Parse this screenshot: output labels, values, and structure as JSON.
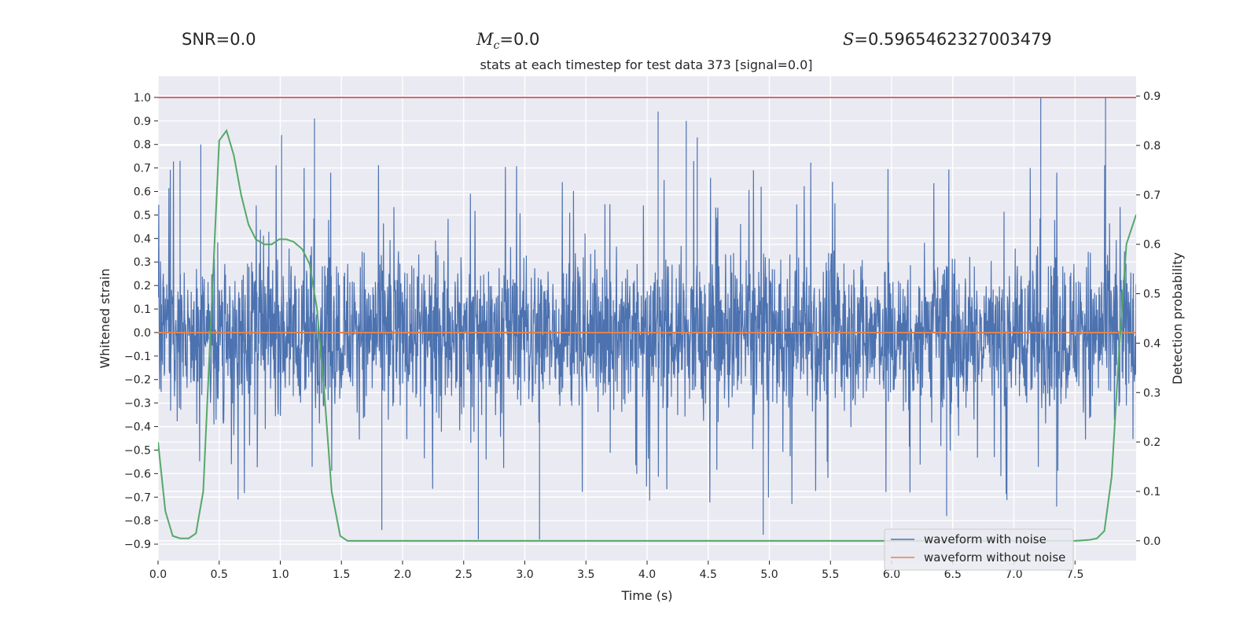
{
  "stats": {
    "snr_label": "SNR=0.0",
    "mc_symbol": "M",
    "mc_sub": "c",
    "mc_value": "=0.0",
    "s_symbol": "S",
    "s_value": "=0.5965462327003479"
  },
  "chart_data": {
    "type": "line",
    "title": "stats at each timestep for test data 373 [signal=0.0]",
    "xlabel": "Time (s)",
    "ylabel": "Whitened strain",
    "y2label": "Detection probability",
    "xlim": [
      0.0,
      8.0
    ],
    "ylim": [
      -0.97,
      1.09
    ],
    "y2lim": [
      -0.04,
      0.94
    ],
    "x_ticks": [
      0.0,
      0.5,
      1.0,
      1.5,
      2.0,
      2.5,
      3.0,
      3.5,
      4.0,
      4.5,
      5.0,
      5.5,
      6.0,
      6.5,
      7.0,
      7.5
    ],
    "x_tick_labels": [
      "0.0",
      "0.5",
      "1.0",
      "1.5",
      "2.0",
      "2.5",
      "3.0",
      "3.5",
      "4.0",
      "4.5",
      "5.0",
      "5.5",
      "6.0",
      "6.5",
      "7.0",
      "7.5"
    ],
    "y_ticks": [
      1.0,
      0.9,
      0.8,
      0.7,
      0.6,
      0.5,
      0.4,
      0.3,
      0.2,
      0.1,
      0.0,
      -0.1,
      -0.2,
      -0.3,
      -0.4,
      -0.5,
      -0.6,
      -0.7,
      -0.8,
      -0.9
    ],
    "y_tick_labels": [
      "1.0",
      "0.9",
      "0.8",
      "0.7",
      "0.6",
      "0.5",
      "0.4",
      "0.3",
      "0.2",
      "0.1",
      "0.0",
      "−0.1",
      "−0.2",
      "−0.3",
      "−0.4",
      "−0.5",
      "−0.6",
      "−0.7",
      "−0.8",
      "−0.9"
    ],
    "y2_ticks": [
      0.9,
      0.8,
      0.7,
      0.6,
      0.5,
      0.4,
      0.3,
      0.2,
      0.1,
      0.0
    ],
    "y2_tick_labels": [
      "0.9",
      "0.8",
      "0.7",
      "0.6",
      "0.5",
      "0.4",
      "0.3",
      "0.2",
      "0.1",
      "0.0"
    ],
    "threshold": {
      "axis": "y",
      "value": 1.0,
      "color": "#c44e52"
    },
    "series": [
      {
        "name": "waveform with noise",
        "color": "#4c72b0",
        "axis": "y",
        "kind": "noise",
        "x_range": [
          0.0,
          8.0
        ],
        "typical_envelope": [
          -0.45,
          0.45
        ],
        "peaks": [
          {
            "x": 0.18,
            "y": 0.73
          },
          {
            "x": 0.35,
            "y": 0.8
          },
          {
            "x": 1.01,
            "y": 0.84
          },
          {
            "x": 1.28,
            "y": 0.91
          },
          {
            "x": 4.09,
            "y": 0.94
          },
          {
            "x": 4.32,
            "y": 0.9
          },
          {
            "x": 4.41,
            "y": 0.83
          },
          {
            "x": 7.22,
            "y": 1.0
          },
          {
            "x": 7.75,
            "y": 1.0
          },
          {
            "x": 2.62,
            "y": -0.88
          },
          {
            "x": 3.12,
            "y": -0.88
          },
          {
            "x": 4.95,
            "y": -0.86
          },
          {
            "x": 1.83,
            "y": -0.84
          },
          {
            "x": 6.45,
            "y": -0.78
          },
          {
            "x": 7.35,
            "y": -0.74
          }
        ]
      },
      {
        "name": "waveform without noise",
        "color": "#dd8452",
        "axis": "y",
        "x": [
          0.0,
          8.0
        ],
        "values": [
          0.0,
          0.0
        ]
      },
      {
        "name": "Detection probability",
        "color": "#55a868",
        "axis": "y2",
        "show_in_legend": false,
        "x": [
          0.0,
          0.06,
          0.12,
          0.18,
          0.25,
          0.31,
          0.37,
          0.43,
          0.5,
          0.56,
          0.62,
          0.68,
          0.74,
          0.8,
          0.87,
          0.93,
          0.99,
          1.05,
          1.11,
          1.18,
          1.24,
          1.3,
          1.36,
          1.42,
          1.49,
          1.55,
          1.6,
          2.0,
          3.0,
          4.0,
          5.0,
          6.0,
          7.0,
          7.5,
          7.62,
          7.68,
          7.74,
          7.8,
          7.86,
          7.92,
          8.0
        ],
        "values": [
          0.2,
          0.06,
          0.01,
          0.005,
          0.005,
          0.015,
          0.1,
          0.43,
          0.81,
          0.83,
          0.78,
          0.7,
          0.64,
          0.61,
          0.6,
          0.6,
          0.61,
          0.61,
          0.605,
          0.59,
          0.56,
          0.47,
          0.3,
          0.1,
          0.01,
          0.0,
          0.0,
          0.0,
          0.0,
          0.0,
          0.0,
          0.0,
          0.0,
          0.0,
          0.002,
          0.005,
          0.02,
          0.13,
          0.38,
          0.6,
          0.66
        ]
      }
    ],
    "legend": {
      "location": "lower right",
      "entries": [
        "waveform with noise",
        "waveform without noise"
      ]
    }
  }
}
